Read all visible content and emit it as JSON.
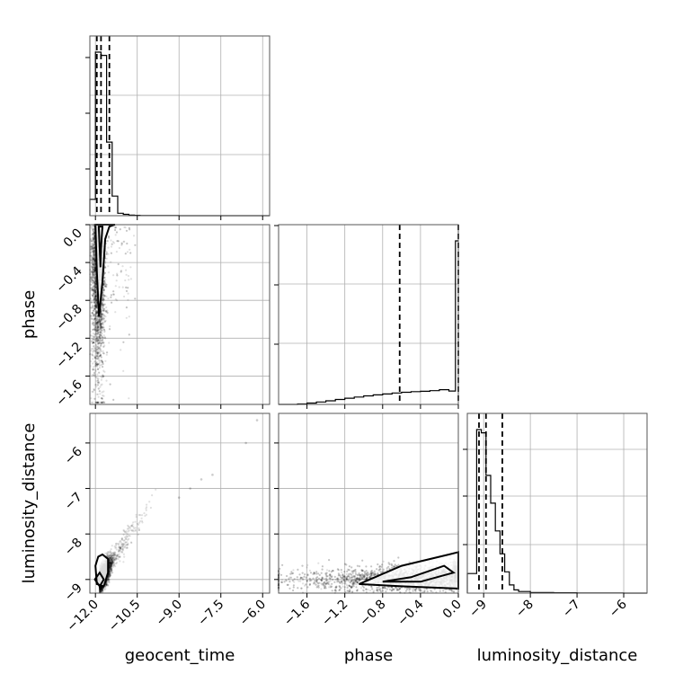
{
  "chart_data": {
    "type": "scatter",
    "title": "",
    "parameters": [
      "geocent_time",
      "phase",
      "luminosity_distance"
    ],
    "xlabels": {
      "geocent_time": "geocent_time",
      "phase": "phase",
      "luminosity_distance": "luminosity_distance"
    },
    "ylabels": {
      "phase": "phase",
      "luminosity_distance": "luminosity_distance"
    },
    "ranges": {
      "geocent_time": [
        -12.2,
        -5.75
      ],
      "phase": [
        -1.9,
        0.0
      ],
      "luminosity_distance": [
        -9.3,
        -5.35
      ]
    },
    "ticks": {
      "geocent_time": [
        -12.0,
        -10.5,
        -9.0,
        -7.5,
        -6.0
      ],
      "geocent_time_labels": [
        "−12.0",
        "−10.5",
        "−9.0",
        "−7.5",
        "−6.0"
      ],
      "phase": [
        -1.6,
        -1.2,
        -0.8,
        -0.4,
        0.0
      ],
      "phase_labels": [
        "−1.6",
        "−1.2",
        "−0.8",
        "−0.4",
        "0.0"
      ],
      "luminosity_distance_y": [
        -9,
        -8,
        -7,
        -6
      ],
      "luminosity_distance_y_labels": [
        "−9",
        "−8",
        "−7",
        "−6"
      ],
      "luminosity_distance_x": [
        -9,
        -8,
        -7,
        -6
      ],
      "luminosity_distance_x_labels": [
        "−9",
        "−8",
        "−7",
        "−6"
      ],
      "luminosity_distance_xrange": [
        -9.35,
        -5.5
      ]
    },
    "histograms": {
      "geocent_time": {
        "bin_edges": [
          -12.2,
          -12.0,
          -11.8,
          -11.6,
          -11.4,
          -11.2,
          -11.0,
          -10.8,
          -10.6,
          -10.4,
          -10.2,
          -10.0,
          -9.5,
          -9.0,
          -8.0,
          -7.0,
          -6.0,
          -5.75
        ],
        "counts": [
          0.1,
          1.0,
          0.98,
          0.45,
          0.12,
          0.015,
          0.008,
          0.004,
          0.002,
          0.001,
          0.001,
          0.0005,
          0.0004,
          0.0002,
          0.0001,
          0.0001,
          0.0
        ],
        "quantiles": [
          -11.95,
          -11.8,
          -11.5
        ]
      },
      "phase": {
        "bin_edges": [
          -1.9,
          -1.8,
          -1.7,
          -1.6,
          -1.5,
          -1.4,
          -1.3,
          -1.2,
          -1.1,
          -1.0,
          -0.9,
          -0.8,
          -0.7,
          -0.6,
          -0.5,
          -0.4,
          -0.3,
          -0.2,
          -0.1,
          -0.03,
          0.0
        ],
        "counts": [
          0.0,
          0.0,
          0.003,
          0.008,
          0.015,
          0.022,
          0.03,
          0.038,
          0.045,
          0.052,
          0.058,
          0.064,
          0.07,
          0.074,
          0.078,
          0.08,
          0.084,
          0.09,
          0.082,
          1.0
        ],
        "quantiles": [
          -0.62,
          0.0
        ]
      },
      "luminosity_distance": {
        "bin_edges": [
          -9.35,
          -9.15,
          -9.05,
          -8.95,
          -8.85,
          -8.75,
          -8.65,
          -8.55,
          -8.45,
          -8.35,
          -8.25,
          -8.0,
          -7.5,
          -7.0,
          -6.5,
          -6.0,
          -5.5
        ],
        "counts": [
          0.12,
          1.0,
          0.98,
          0.72,
          0.55,
          0.38,
          0.24,
          0.13,
          0.05,
          0.02,
          0.01,
          0.004,
          0.002,
          0.001,
          0.001,
          0.0
        ],
        "quantiles": [
          -9.1,
          -8.95,
          -8.6
        ]
      }
    },
    "joint": {
      "phase_vs_geocent_time": {
        "n_points": 3500,
        "center": [
          -11.9,
          -0.2
        ],
        "contour_inner": [
          [
            -11.88,
            -0.02
          ],
          [
            -11.82,
            -0.45
          ],
          [
            -11.8,
            -0.25
          ],
          [
            -11.75,
            -0.02
          ]
        ],
        "contour_outer": [
          [
            -12.0,
            0.0
          ],
          [
            -11.95,
            -0.5
          ],
          [
            -11.9,
            -0.8
          ],
          [
            -11.87,
            -0.97
          ],
          [
            -11.75,
            -0.6
          ],
          [
            -11.65,
            -0.15
          ],
          [
            -11.5,
            -0.02
          ],
          [
            -11.3,
            0.0
          ]
        ]
      },
      "luminosity_distance_vs_geocent_time": {
        "n_points": 3500,
        "center": [
          -11.85,
          -9.0
        ],
        "contour_inner": [
          [
            -12.02,
            -9.0
          ],
          [
            -11.85,
            -9.15
          ],
          [
            -11.7,
            -9.0
          ],
          [
            -11.85,
            -8.85
          ]
        ],
        "contour_outer": [
          [
            -12.0,
            -8.7
          ],
          [
            -11.95,
            -9.1
          ],
          [
            -11.7,
            -9.15
          ],
          [
            -11.55,
            -8.85
          ],
          [
            -11.55,
            -8.55
          ],
          [
            -11.75,
            -8.45
          ],
          [
            -11.9,
            -8.5
          ]
        ],
        "outliers": [
          [
            -6.2,
            -5.5
          ],
          [
            -6.6,
            -6.0
          ],
          [
            -7.8,
            -6.7
          ],
          [
            -8.2,
            -6.8
          ],
          [
            -8.6,
            -7.0
          ],
          [
            -9.0,
            -7.2
          ]
        ]
      },
      "luminosity_distance_vs_phase": {
        "n_points": 3500,
        "center": [
          -0.05,
          -8.9
        ],
        "contour_inner": [
          [
            -0.8,
            -9.05
          ],
          [
            -0.5,
            -8.95
          ],
          [
            -0.15,
            -8.7
          ],
          [
            -0.05,
            -8.85
          ],
          [
            -0.4,
            -9.05
          ]
        ],
        "contour_outer": [
          [
            -1.05,
            -9.1
          ],
          [
            -0.6,
            -8.7
          ],
          [
            -0.1,
            -8.45
          ],
          [
            0.0,
            -8.4
          ],
          [
            0.0,
            -9.2
          ],
          [
            -0.6,
            -9.15
          ]
        ]
      }
    },
    "grid": true
  }
}
